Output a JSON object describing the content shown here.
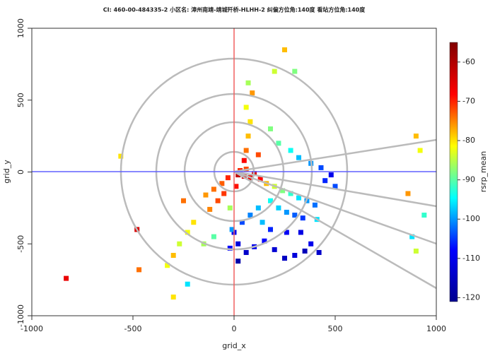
{
  "chart_data": {
    "type": "scatter",
    "title": "CI: 460-00-484335-2  小区名: 漳州南靖-靖城歼桥-HLHH-2  纠偏方位角:140度  看站方位角:140度",
    "x_label": "grid_x",
    "y_label": "grid_y",
    "colorbar_label": "rsrp_mean",
    "xlim": [
      -1000,
      1000
    ],
    "ylim": [
      -1000,
      1000
    ],
    "xticks": [
      -1000,
      -500,
      0,
      500,
      1000
    ],
    "yticks": [
      -1000,
      -500,
      0,
      500,
      1000
    ],
    "clim": [
      -121,
      -55
    ],
    "cticks": [
      -60,
      -70,
      -80,
      -90,
      -100,
      -110,
      -120
    ],
    "colors": [
      "#00008f",
      "#0000ff",
      "#00ffff",
      "#ffff00",
      "#ff0000",
      "#800000"
    ],
    "x": [
      20,
      50,
      80,
      100,
      130,
      30,
      60,
      -30,
      -60,
      -100,
      -140,
      -80,
      -120,
      -50,
      10,
      160,
      200,
      240,
      280,
      320,
      360,
      400,
      180,
      220,
      260,
      300,
      340,
      120,
      80,
      40,
      0,
      20,
      60,
      100,
      150,
      200,
      250,
      300,
      350,
      380,
      420,
      -20,
      180,
      260,
      330,
      60,
      70,
      80,
      60,
      90,
      70,
      120,
      50,
      180,
      220,
      280,
      320,
      380,
      430,
      450,
      480,
      500,
      250,
      200,
      300,
      -200,
      -230,
      -270,
      -300,
      -330,
      -150,
      -100,
      900,
      920,
      860,
      940,
      900,
      880,
      -830,
      -480,
      -560,
      -470,
      -300,
      -230,
      20,
      -10,
      140,
      410,
      -20,
      -250
    ],
    "y": [
      -20,
      -30,
      -40,
      -10,
      -50,
      10,
      20,
      -40,
      -80,
      -120,
      -160,
      -200,
      -260,
      -150,
      -100,
      -80,
      -100,
      -130,
      -150,
      -180,
      -200,
      -230,
      -200,
      -250,
      -280,
      -300,
      -320,
      -250,
      -300,
      -350,
      -420,
      -500,
      -560,
      -520,
      -480,
      -540,
      -600,
      -580,
      -550,
      -500,
      -560,
      -530,
      -400,
      -420,
      -420,
      150,
      250,
      350,
      450,
      550,
      620,
      120,
      80,
      300,
      200,
      150,
      100,
      60,
      30,
      -60,
      -20,
      -100,
      850,
      700,
      700,
      -350,
      -420,
      -500,
      -580,
      -650,
      -500,
      -450,
      250,
      150,
      -150,
      -300,
      -550,
      -450,
      -740,
      -400,
      110,
      -680,
      -870,
      -780,
      -620,
      -400,
      -350,
      -330,
      -250,
      -200
    ],
    "values": [
      -62,
      -65,
      -66,
      -64,
      -68,
      -70,
      -72,
      -70,
      -73,
      -74,
      -76,
      -72,
      -75,
      -71,
      -69,
      -78,
      -84,
      -88,
      -92,
      -96,
      -100,
      -102,
      -94,
      -97,
      -100,
      -103,
      -105,
      -98,
      -101,
      -104,
      -110,
      -112,
      -114,
      -110,
      -108,
      -113,
      -115,
      -112,
      -116,
      -110,
      -114,
      -108,
      -106,
      -109,
      -111,
      -74,
      -78,
      -80,
      -82,
      -76,
      -86,
      -72,
      -68,
      -88,
      -90,
      -94,
      -98,
      -100,
      -104,
      -106,
      -110,
      -104,
      -78,
      -84,
      -88,
      -80,
      -82,
      -84,
      -78,
      -82,
      -86,
      -90,
      -78,
      -82,
      -76,
      -92,
      -84,
      -96,
      -66,
      -64,
      -80,
      -74,
      -80,
      -96,
      -118,
      -100,
      -98,
      -96,
      -86,
      -74
    ]
  }
}
